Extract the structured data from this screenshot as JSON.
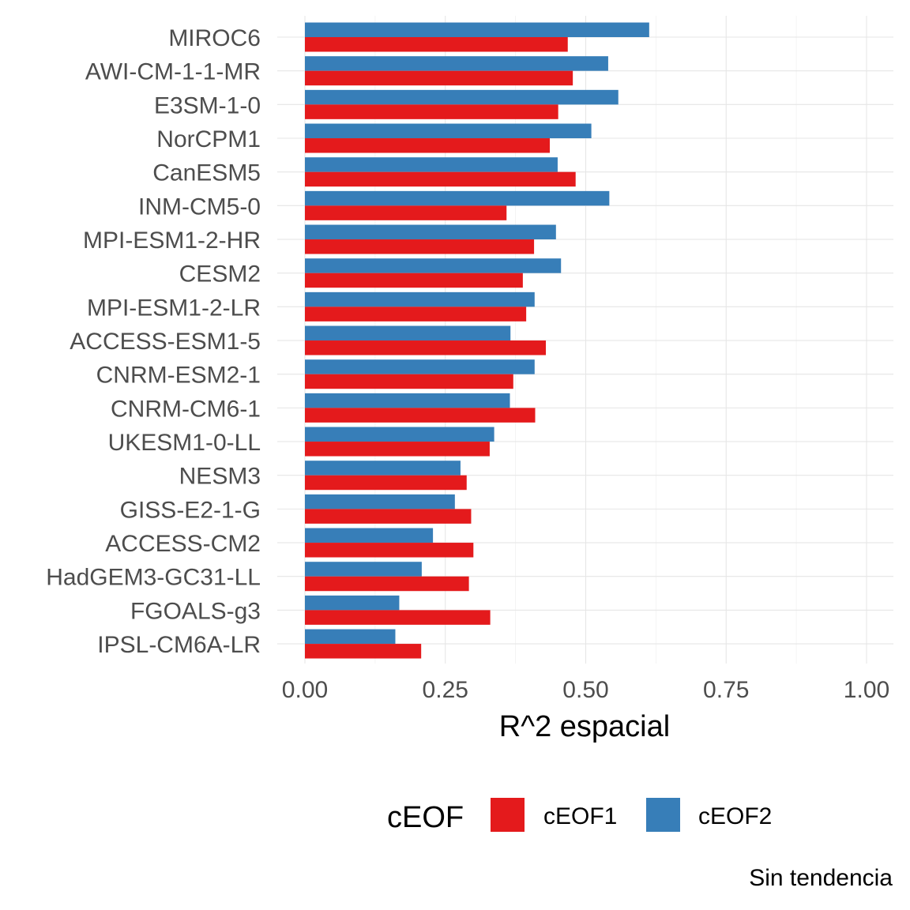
{
  "chart_data": {
    "type": "bar",
    "orientation": "horizontal",
    "categories": [
      "MIROC6",
      "AWI-CM-1-1-MR",
      "E3SM-1-0",
      "NorCPM1",
      "CanESM5",
      "INM-CM5-0",
      "MPI-ESM1-2-HR",
      "CESM2",
      "MPI-ESM1-2-LR",
      "ACCESS-ESM1-5",
      "CNRM-ESM2-1",
      "CNRM-CM6-1",
      "UKESM1-0-LL",
      "NESM3",
      "GISS-E2-1-G",
      "ACCESS-CM2",
      "HadGEM3-GC31-LL",
      "FGOALS-g3",
      "IPSL-CM6A-LR"
    ],
    "series": [
      {
        "name": "cEOF1",
        "color": "#e41a1c",
        "values": [
          0.468,
          0.477,
          0.451,
          0.436,
          0.482,
          0.359,
          0.408,
          0.388,
          0.394,
          0.429,
          0.371,
          0.41,
          0.329,
          0.288,
          0.296,
          0.3,
          0.292,
          0.33,
          0.207
        ]
      },
      {
        "name": "cEOF2",
        "color": "#377eb8",
        "values": [
          0.613,
          0.54,
          0.558,
          0.51,
          0.45,
          0.542,
          0.447,
          0.456,
          0.409,
          0.366,
          0.409,
          0.365,
          0.337,
          0.277,
          0.267,
          0.228,
          0.208,
          0.168,
          0.161
        ]
      }
    ],
    "xlim": [
      0,
      1.05
    ],
    "xticks": [
      "0.00",
      "0.25",
      "0.50",
      "0.75",
      "1.00"
    ],
    "xtick_values": [
      0,
      0.25,
      0.5,
      0.75,
      1.0
    ],
    "xlabel": "R^2 espacial",
    "legend_title": "cEOF",
    "legend_position": "bottom",
    "caption": "Sin tendencia",
    "grid": true
  }
}
